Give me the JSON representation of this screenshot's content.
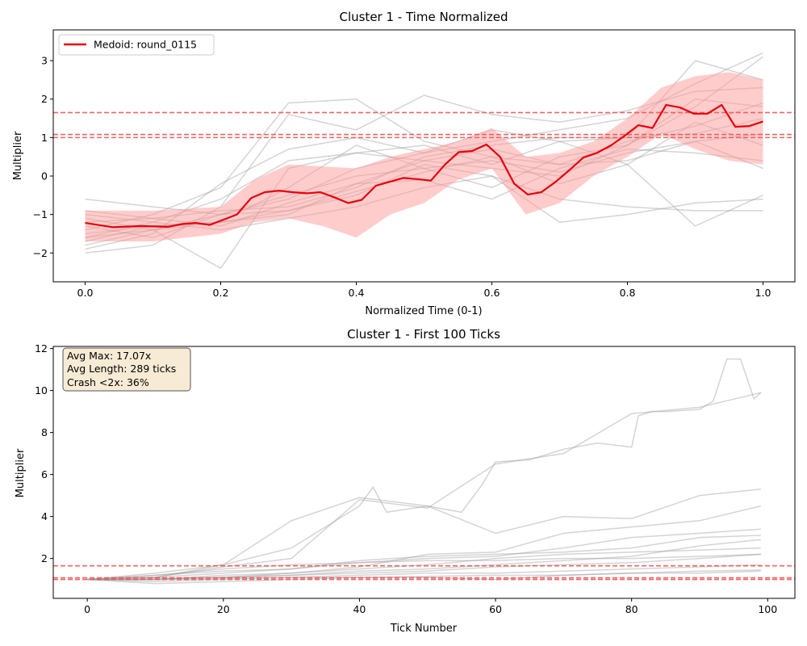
{
  "chart_data": [
    {
      "type": "line",
      "title": "Cluster 1 - Time Normalized",
      "xlabel": "Normalized Time (0-1)",
      "ylabel": "Multiplier",
      "xlim": [
        -0.047,
        1.047
      ],
      "ylim": [
        -2.75,
        3.8
      ],
      "xticks": [
        0,
        0.2,
        0.4,
        0.6,
        0.8,
        1.0
      ],
      "xtick_labels": [
        "0.0",
        "0.2",
        "0.4",
        "0.6",
        "0.8",
        "1.0"
      ],
      "yticks": [
        -2,
        -1,
        0,
        1,
        2,
        3
      ],
      "ytick_labels": [
        "−2",
        "−1",
        "0",
        "1",
        "2",
        "3"
      ],
      "legend": {
        "location": "top-left",
        "entries": [
          "Medoid: round_0115"
        ]
      },
      "reference_lines_y": [
        1.0,
        1.08,
        1.65
      ],
      "colors": {
        "medoid": "#e8000b",
        "band": "#ff9a9a",
        "rounds": "#a0a0a0",
        "refline": "#ee5555"
      },
      "medoid": {
        "name": "Medoid: round_0115",
        "x": [
          0.0,
          0.041,
          0.082,
          0.122,
          0.143,
          0.163,
          0.184,
          0.224,
          0.245,
          0.265,
          0.286,
          0.306,
          0.327,
          0.347,
          0.367,
          0.388,
          0.408,
          0.429,
          0.449,
          0.469,
          0.49,
          0.51,
          0.531,
          0.551,
          0.571,
          0.592,
          0.612,
          0.633,
          0.653,
          0.673,
          0.694,
          0.714,
          0.735,
          0.755,
          0.776,
          0.796,
          0.816,
          0.837,
          0.857,
          0.878,
          0.898,
          0.918,
          0.939,
          0.959,
          0.98,
          1.0
        ],
        "y": [
          -1.22,
          -1.33,
          -1.3,
          -1.32,
          -1.25,
          -1.22,
          -1.27,
          -1.0,
          -0.57,
          -0.42,
          -0.38,
          -0.42,
          -0.45,
          -0.42,
          -0.55,
          -0.7,
          -0.62,
          -0.25,
          -0.15,
          -0.05,
          -0.08,
          -0.12,
          0.3,
          0.62,
          0.65,
          0.82,
          0.5,
          -0.2,
          -0.48,
          -0.42,
          -0.15,
          0.15,
          0.48,
          0.6,
          0.8,
          1.05,
          1.32,
          1.25,
          1.85,
          1.78,
          1.62,
          1.62,
          1.85,
          1.28,
          1.3,
          1.42
        ]
      },
      "band": {
        "x": [
          0.0,
          0.1,
          0.2,
          0.25,
          0.3,
          0.35,
          0.4,
          0.45,
          0.5,
          0.55,
          0.6,
          0.65,
          0.7,
          0.75,
          0.8,
          0.85,
          0.9,
          0.95,
          1.0
        ],
        "upper": [
          -0.9,
          -0.9,
          -0.8,
          -0.1,
          0.3,
          0.25,
          0.2,
          0.5,
          0.7,
          0.9,
          1.25,
          0.5,
          0.6,
          0.9,
          1.5,
          2.3,
          2.6,
          2.7,
          2.5
        ],
        "lower": [
          -1.7,
          -1.7,
          -1.5,
          -1.2,
          -1.1,
          -1.3,
          -1.6,
          -1.0,
          -0.7,
          -0.1,
          0.2,
          -1.0,
          -0.7,
          0.0,
          0.5,
          1.1,
          0.7,
          0.4,
          0.3
        ]
      },
      "rounds_x": [
        0.0,
        0.1,
        0.2,
        0.3,
        0.4,
        0.5,
        0.6,
        0.7,
        0.8,
        0.9,
        1.0
      ],
      "rounds": [
        [
          -1.8,
          -1.4,
          -1.2,
          -1.0,
          -0.2,
          0.4,
          0.2,
          0.0,
          0.8,
          1.8,
          3.1
        ],
        [
          -1.6,
          -1.2,
          -0.6,
          0.4,
          0.6,
          0.8,
          0.3,
          0.9,
          1.0,
          1.1,
          1.5
        ],
        [
          -2.0,
          -1.8,
          -0.8,
          1.6,
          1.2,
          2.1,
          1.6,
          1.4,
          1.7,
          2.2,
          2.3
        ],
        [
          -0.6,
          -0.8,
          -1.0,
          -0.5,
          0.0,
          0.2,
          -0.3,
          0.5,
          0.8,
          2.0,
          1.8
        ],
        [
          -1.2,
          -1.1,
          -0.9,
          -0.8,
          -0.3,
          0.5,
          0.8,
          1.0,
          1.0,
          3.0,
          2.5
        ],
        [
          -1.5,
          -1.3,
          -1.2,
          -0.3,
          0.8,
          0.2,
          0.4,
          0.1,
          0.6,
          0.9,
          0.2
        ],
        [
          -1.9,
          -1.5,
          -0.2,
          0.7,
          1.0,
          0.6,
          1.2,
          0.9,
          0.3,
          -1.3,
          -0.5
        ],
        [
          -1.0,
          -1.2,
          -1.4,
          -1.1,
          -0.8,
          -0.3,
          0.0,
          -0.6,
          -0.8,
          -0.9,
          -0.9
        ],
        [
          -1.3,
          -1.6,
          -1.0,
          -0.9,
          -0.5,
          0.3,
          0.0,
          -1.2,
          -1.0,
          -0.7,
          -0.6
        ],
        [
          -1.7,
          -1.3,
          -1.2,
          -0.9,
          -0.4,
          0.1,
          0.5,
          0.3,
          0.4,
          0.9,
          1.1
        ],
        [
          -1.4,
          -1.0,
          -0.3,
          1.9,
          2.0,
          0.9,
          0.5,
          -0.2,
          0.3,
          1.4,
          0.8
        ],
        [
          -1.1,
          -1.4,
          -2.4,
          0.2,
          0.6,
          0.4,
          0.7,
          0.3,
          0.9,
          1.3,
          1.9
        ],
        [
          -0.9,
          -1.1,
          -1.3,
          -0.7,
          -0.2,
          -0.1,
          -0.6,
          0.2,
          0.7,
          0.6,
          0.4
        ],
        [
          -1.6,
          -1.4,
          -1.0,
          -0.6,
          0.2,
          0.6,
          0.9,
          1.2,
          1.5,
          2.4,
          3.2
        ]
      ]
    },
    {
      "type": "line",
      "title": "Cluster 1 - First 100 Ticks",
      "xlabel": "Tick Number",
      "ylabel": "Multiplier",
      "xlim": [
        -5,
        104
      ],
      "ylim": [
        0.1,
        12.1
      ],
      "xticks": [
        0,
        20,
        40,
        60,
        80,
        100
      ],
      "xtick_labels": [
        "0",
        "20",
        "40",
        "60",
        "80",
        "100"
      ],
      "yticks": [
        2,
        4,
        6,
        8,
        10,
        12
      ],
      "ytick_labels": [
        "2",
        "4",
        "6",
        "8",
        "10",
        "12"
      ],
      "reference_lines_y": [
        1.0,
        1.08,
        1.65
      ],
      "stats_box": [
        "Avg Max: 17.07x",
        "Avg Length: 289 ticks",
        "Crash <2x: 36%"
      ],
      "rounds_x": [
        0,
        10,
        20,
        30,
        40,
        50,
        60,
        70,
        80,
        90,
        99
      ],
      "rounds": [
        [
          1.0,
          1.1,
          1.6,
          2.0,
          4.8,
          4.4,
          6.5,
          7.0,
          8.9,
          9.2,
          9.9
        ],
        [
          1.0,
          1.3,
          1.7,
          3.8,
          4.9,
          4.5,
          3.2,
          4.0,
          3.9,
          5.0,
          5.3
        ],
        [
          1.0,
          1.0,
          1.1,
          1.3,
          1.6,
          2.2,
          2.3,
          3.2,
          3.5,
          3.8,
          4.5
        ],
        [
          1.0,
          1.2,
          1.4,
          1.5,
          1.9,
          2.1,
          2.2,
          2.3,
          2.5,
          3.0,
          3.1
        ],
        [
          1.0,
          1.0,
          1.2,
          1.3,
          1.5,
          1.7,
          2.0,
          2.2,
          2.3,
          2.4,
          2.5
        ],
        [
          1.0,
          1.05,
          1.1,
          1.2,
          1.3,
          1.4,
          1.6,
          1.7,
          1.8,
          2.0,
          2.2
        ],
        [
          1.0,
          0.9,
          1.0,
          1.1,
          1.2,
          1.3,
          1.3,
          1.4,
          1.5,
          1.6,
          1.7
        ],
        [
          1.0,
          1.1,
          1.3,
          1.5,
          1.8,
          1.9,
          1.9,
          2.0,
          2.0,
          2.1,
          2.2
        ],
        [
          1.0,
          0.8,
          0.9,
          1.0,
          1.1,
          1.1,
          1.0,
          1.2,
          1.3,
          1.3,
          1.4
        ],
        [
          1.0,
          1.0,
          1.05,
          1.1,
          1.1,
          1.15,
          1.2,
          1.2,
          1.3,
          1.4,
          1.45
        ],
        [
          1.0,
          1.2,
          1.5,
          1.7,
          1.8,
          2.0,
          2.1,
          2.5,
          3.0,
          3.2,
          3.4
        ],
        [
          1.0,
          1.0,
          1.1,
          1.2,
          1.4,
          1.5,
          1.7,
          1.9,
          2.1,
          2.6,
          2.9
        ]
      ],
      "spike_round": {
        "x": [
          0,
          10,
          20,
          30,
          40,
          42,
          44,
          50,
          55,
          58,
          60,
          65,
          70,
          75,
          80,
          81,
          83,
          85,
          90,
          92,
          94,
          96,
          98,
          99
        ],
        "y": [
          1.0,
          1.1,
          1.7,
          2.5,
          4.5,
          5.4,
          4.2,
          4.5,
          4.2,
          5.5,
          6.6,
          6.7,
          7.2,
          7.5,
          7.3,
          8.8,
          9.0,
          9.0,
          9.1,
          9.5,
          11.5,
          11.5,
          9.6,
          9.9
        ]
      }
    }
  ]
}
